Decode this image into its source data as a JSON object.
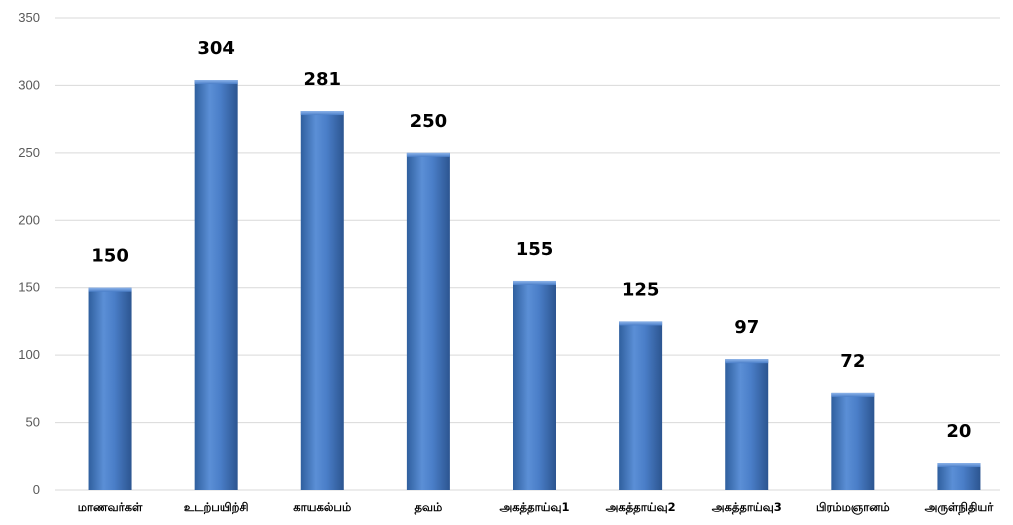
{
  "chart_data": {
    "type": "bar",
    "title": "",
    "xlabel": "",
    "ylabel": "",
    "categories": [
      "மாணவர்கள்",
      "உடற்பயிற்சி",
      "காயகல்பம்",
      "தவம்",
      "அகத்தாய்வு1",
      "அகத்தாய்வு2",
      "அகத்தாய்வு3",
      "பிரம்மஞானம்",
      "அருள்நிதியர்"
    ],
    "values": [
      150,
      304,
      281,
      250,
      155,
      125,
      97,
      72,
      20
    ],
    "ylim": [
      0,
      350
    ],
    "yticks": [
      0,
      50,
      100,
      150,
      200,
      250,
      300,
      350
    ],
    "grid": true,
    "legend": "none",
    "bar_color": "#4a7ec8",
    "bar_color_dark": "#2b5aa0",
    "bar_color_light": "#6f9ee0"
  }
}
